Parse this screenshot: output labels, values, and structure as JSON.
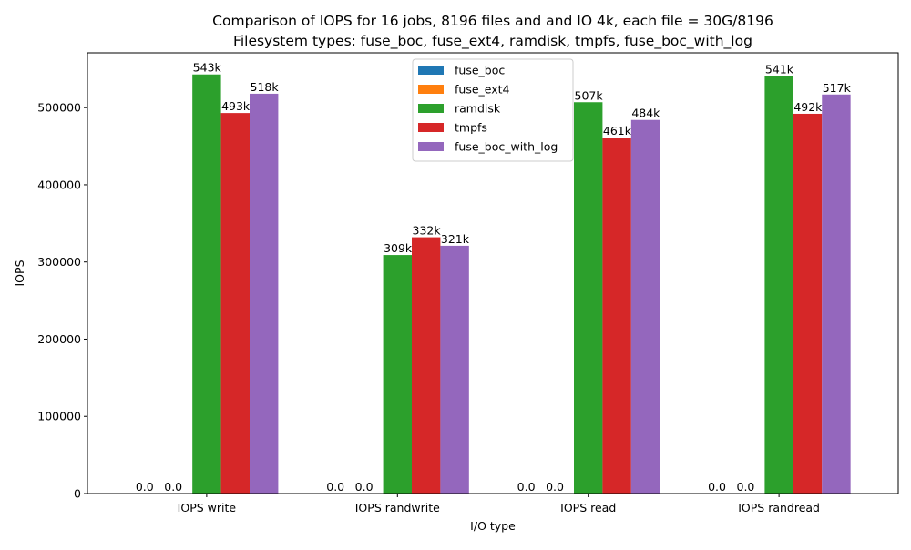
{
  "chart_data": {
    "type": "bar",
    "title": "Comparison of IOPS for 16 jobs, 8196 files and  and IO 4k, each file = 30G/8196",
    "subtitle": "Filesystem types: fuse_boc, fuse_ext4, ramdisk, tmpfs, fuse_boc_with_log",
    "xlabel": "I/O type",
    "ylabel": "IOPS",
    "categories": [
      "IOPS write",
      "IOPS randwrite",
      "IOPS read",
      "IOPS randread"
    ],
    "ylim": [
      0,
      571000
    ],
    "yticks": [
      0,
      100000,
      200000,
      300000,
      400000,
      500000
    ],
    "ytick_labels": [
      "0",
      "100000",
      "200000",
      "300000",
      "400000",
      "500000"
    ],
    "grid": false,
    "legend_position": "top-center",
    "series": [
      {
        "name": "fuse_boc",
        "color": "#1f77b4",
        "values": [
          0,
          0,
          0,
          0
        ],
        "labels": [
          "0.0",
          "0.0",
          "0.0",
          "0.0"
        ]
      },
      {
        "name": "fuse_ext4",
        "color": "#ff7f0e",
        "values": [
          0,
          0,
          0,
          0
        ],
        "labels": [
          "0.0",
          "0.0",
          "0.0",
          "0.0"
        ]
      },
      {
        "name": "ramdisk",
        "color": "#2ca02c",
        "values": [
          543000,
          309000,
          507000,
          541000
        ],
        "labels": [
          "543k",
          "309k",
          "507k",
          "541k"
        ]
      },
      {
        "name": "tmpfs",
        "color": "#d62728",
        "values": [
          493000,
          332000,
          461000,
          492000
        ],
        "labels": [
          "493k",
          "332k",
          "461k",
          "492k"
        ]
      },
      {
        "name": "fuse_boc_with_log",
        "color": "#9467bd",
        "values": [
          518000,
          321000,
          484000,
          517000
        ],
        "labels": [
          "518k",
          "321k",
          "484k",
          "517k"
        ]
      }
    ]
  }
}
